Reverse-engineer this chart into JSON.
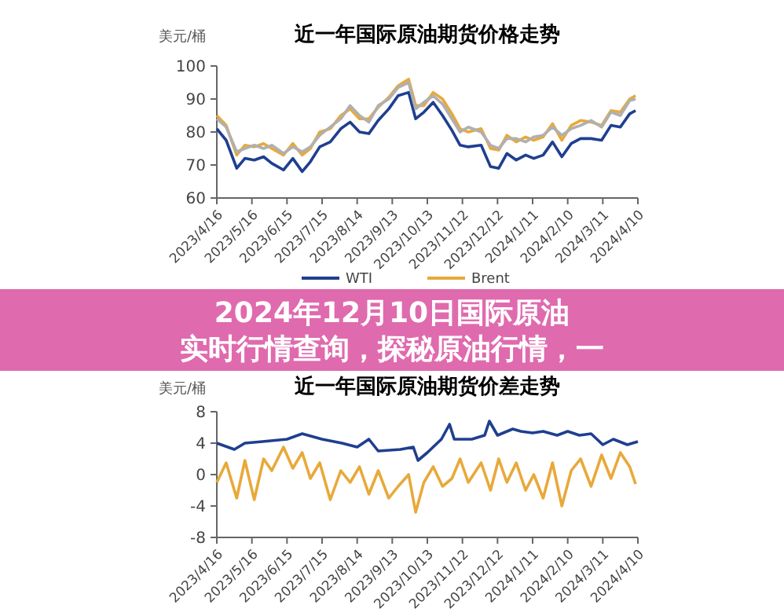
{
  "chart_data": [
    {
      "type": "line",
      "title": "近一年国际原油期货价格走势",
      "ylabel": "美元/桶",
      "ylim": [
        60,
        100
      ],
      "yticks": [
        60,
        70,
        80,
        90,
        100
      ],
      "xlim": [
        "2023-04-16",
        "2024-04-10"
      ],
      "xticks": [
        {
          "value": "2023-04-16",
          "label": "2023/4/16"
        },
        {
          "value": "2023-05-16",
          "label": "2023/5/16"
        },
        {
          "value": "2023-06-15",
          "label": "2023/6/15"
        },
        {
          "value": "2023-07-15",
          "label": "2023/7/15"
        },
        {
          "value": "2023-08-14",
          "label": "2023/8/14"
        },
        {
          "value": "2023-09-13",
          "label": "2023/9/13"
        },
        {
          "value": "2023-10-13",
          "label": "2023/10/13"
        },
        {
          "value": "2023-11-12",
          "label": "2023/11/12"
        },
        {
          "value": "2023-12-12",
          "label": "2023/12/12"
        },
        {
          "value": "2024-01-11",
          "label": "2024/1/11"
        },
        {
          "value": "2024-02-10",
          "label": "2024/2/10"
        },
        {
          "value": "2024-03-11",
          "label": "2024/3/11"
        },
        {
          "value": "2024-04-10",
          "label": "2024/4/10"
        }
      ],
      "x": [
        "2023-04-16",
        "2023-04-24",
        "2023-05-03",
        "2023-05-10",
        "2023-05-18",
        "2023-05-26",
        "2023-06-02",
        "2023-06-12",
        "2023-06-20",
        "2023-06-28",
        "2023-07-05",
        "2023-07-13",
        "2023-07-22",
        "2023-07-31",
        "2023-08-08",
        "2023-08-16",
        "2023-08-24",
        "2023-09-01",
        "2023-09-10",
        "2023-09-18",
        "2023-09-27",
        "2023-10-03",
        "2023-10-10",
        "2023-10-18",
        "2023-10-26",
        "2023-11-03",
        "2023-11-10",
        "2023-11-17",
        "2023-11-28",
        "2023-12-06",
        "2023-12-13",
        "2023-12-20",
        "2023-12-28",
        "2024-01-05",
        "2024-01-12",
        "2024-01-20",
        "2024-01-28",
        "2024-02-05",
        "2024-02-13",
        "2024-02-21",
        "2024-03-01",
        "2024-03-10",
        "2024-03-18",
        "2024-03-26",
        "2024-04-03",
        "2024-04-08"
      ],
      "series": [
        {
          "name": "WTI",
          "color": "#1f3f8f",
          "values": [
            81,
            77.5,
            69,
            72,
            71.5,
            72.5,
            70.5,
            68.5,
            72,
            68,
            71,
            75.5,
            77,
            81,
            83,
            80,
            79.5,
            83.5,
            87,
            91,
            92,
            84,
            86,
            89,
            85,
            80.5,
            76,
            75.5,
            76,
            69.5,
            69,
            73.5,
            71.5,
            73,
            72,
            73,
            77,
            72.5,
            76.5,
            78,
            78,
            77.5,
            82,
            81.5,
            85.5,
            86.5
          ]
        },
        {
          "name": "Brent",
          "color": "#e8a93a",
          "values": [
            85,
            82,
            73,
            76,
            75.5,
            76.5,
            75,
            73,
            76.5,
            73,
            75,
            80,
            81,
            85,
            87,
            84,
            84,
            87.5,
            90.5,
            94,
            96,
            88,
            88,
            92,
            90,
            85.5,
            81,
            80,
            81,
            75,
            74.5,
            79,
            77,
            78.5,
            77.5,
            78.5,
            82.5,
            77.5,
            82,
            83.5,
            83,
            82,
            86.5,
            86,
            90,
            91
          ]
        },
        {
          "color": "#b0b0b0",
          "values": [
            84,
            81.5,
            74,
            75,
            76,
            75,
            76,
            73.5,
            75.5,
            74,
            75.5,
            79,
            81.5,
            84,
            88,
            85,
            83,
            88,
            90,
            93.5,
            95,
            87,
            89,
            91,
            88.5,
            84,
            80,
            81.5,
            80,
            76,
            75,
            78,
            78,
            77,
            78.5,
            79,
            81.5,
            79,
            81,
            82,
            83.5,
            81.5,
            86,
            85,
            89.5,
            90
          ]
        }
      ],
      "legend": "bottom",
      "marker": "none",
      "grid": false,
      "annotations": [
        "2024年12月10日国际原油实时行情查询，探秘原油行情，一"
      ]
    },
    {
      "type": "line",
      "title": "近一年国际原油期货价差走势",
      "ylabel": "美元/桶",
      "ylim": [
        -8,
        8
      ],
      "yticks": [
        -8,
        -4,
        0,
        4,
        8
      ],
      "xlim": [
        "2023-04-16",
        "2024-04-10"
      ],
      "xticks": [
        {
          "value": "2023-04-16",
          "label": "2023/4/16"
        },
        {
          "value": "2023-05-16",
          "label": "2023/5/16"
        },
        {
          "value": "2023-06-15",
          "label": "2023/6/15"
        },
        {
          "value": "2023-07-15",
          "label": "2023/7/15"
        },
        {
          "value": "2023-08-14",
          "label": "2023/8/14"
        },
        {
          "value": "2023-09-13",
          "label": "2023/9/13"
        },
        {
          "value": "2023-10-13",
          "label": "2023/10/13"
        },
        {
          "value": "2023-11-12",
          "label": "2023/11/12"
        },
        {
          "value": "2023-12-12",
          "label": "2023/12/12"
        },
        {
          "value": "2024-01-11",
          "label": "2024/1/11"
        },
        {
          "value": "2024-02-10",
          "label": "2024/2/10"
        },
        {
          "value": "2024-03-11",
          "label": "2024/3/11"
        },
        {
          "value": "2024-04-10",
          "label": "2024/4/10"
        }
      ],
      "series": [
        {
          "color": "#1f3f8f",
          "x": [
            "2023-04-16",
            "2023-05-01",
            "2023-05-10",
            "2023-05-25",
            "2023-06-15",
            "2023-06-28",
            "2023-07-15",
            "2023-08-01",
            "2023-08-14",
            "2023-08-24",
            "2023-09-01",
            "2023-09-20",
            "2023-10-01",
            "2023-10-05",
            "2023-10-13",
            "2023-10-25",
            "2023-11-01",
            "2023-11-05",
            "2023-11-20",
            "2023-12-01",
            "2023-12-05",
            "2023-12-12",
            "2023-12-25",
            "2024-01-01",
            "2024-01-11",
            "2024-01-20",
            "2024-02-01",
            "2024-02-10",
            "2024-02-20",
            "2024-03-01",
            "2024-03-11",
            "2024-03-20",
            "2024-04-01",
            "2024-04-10"
          ],
          "values": [
            4,
            3.2,
            4,
            4.2,
            4.5,
            5.2,
            4.5,
            4,
            3.5,
            4.5,
            3,
            3.2,
            3.5,
            1.8,
            2.8,
            4.5,
            6.4,
            4.5,
            4.5,
            5,
            6.8,
            5,
            5.8,
            5.5,
            5.3,
            5.5,
            5,
            5.5,
            5,
            5.2,
            3.8,
            4.5,
            3.8,
            4.2
          ]
        },
        {
          "color": "#e8a93a",
          "x": [
            "2023-04-16",
            "2023-04-24",
            "2023-05-03",
            "2023-05-10",
            "2023-05-18",
            "2023-05-26",
            "2023-06-02",
            "2023-06-12",
            "2023-06-20",
            "2023-06-28",
            "2023-07-05",
            "2023-07-13",
            "2023-07-22",
            "2023-07-31",
            "2023-08-08",
            "2023-08-16",
            "2023-08-24",
            "2023-09-01",
            "2023-09-10",
            "2023-09-18",
            "2023-09-27",
            "2023-10-03",
            "2023-10-10",
            "2023-10-18",
            "2023-10-26",
            "2023-11-03",
            "2023-11-10",
            "2023-11-17",
            "2023-11-28",
            "2023-12-06",
            "2023-12-13",
            "2023-12-20",
            "2023-12-28",
            "2024-01-05",
            "2024-01-12",
            "2024-01-20",
            "2024-01-28",
            "2024-02-05",
            "2024-02-13",
            "2024-02-21",
            "2024-03-01",
            "2024-03-10",
            "2024-03-18",
            "2024-03-26",
            "2024-04-03",
            "2024-04-08"
          ],
          "values": [
            -1,
            1.5,
            -3,
            1.8,
            -3.2,
            2,
            0.5,
            3.5,
            0.8,
            2.8,
            -0.5,
            1.5,
            -3.2,
            0.5,
            -1,
            1,
            -2.5,
            0.5,
            -3,
            -1.5,
            0,
            -4.8,
            -1,
            1,
            -1.5,
            -0.5,
            2,
            -1,
            1.5,
            -2,
            2,
            -1,
            1.5,
            -2,
            0,
            -3,
            1.5,
            -4,
            0.5,
            2,
            -1.5,
            2.5,
            -0.5,
            2.8,
            1,
            -1.2
          ]
        }
      ],
      "marker": "none",
      "grid": false
    }
  ]
}
